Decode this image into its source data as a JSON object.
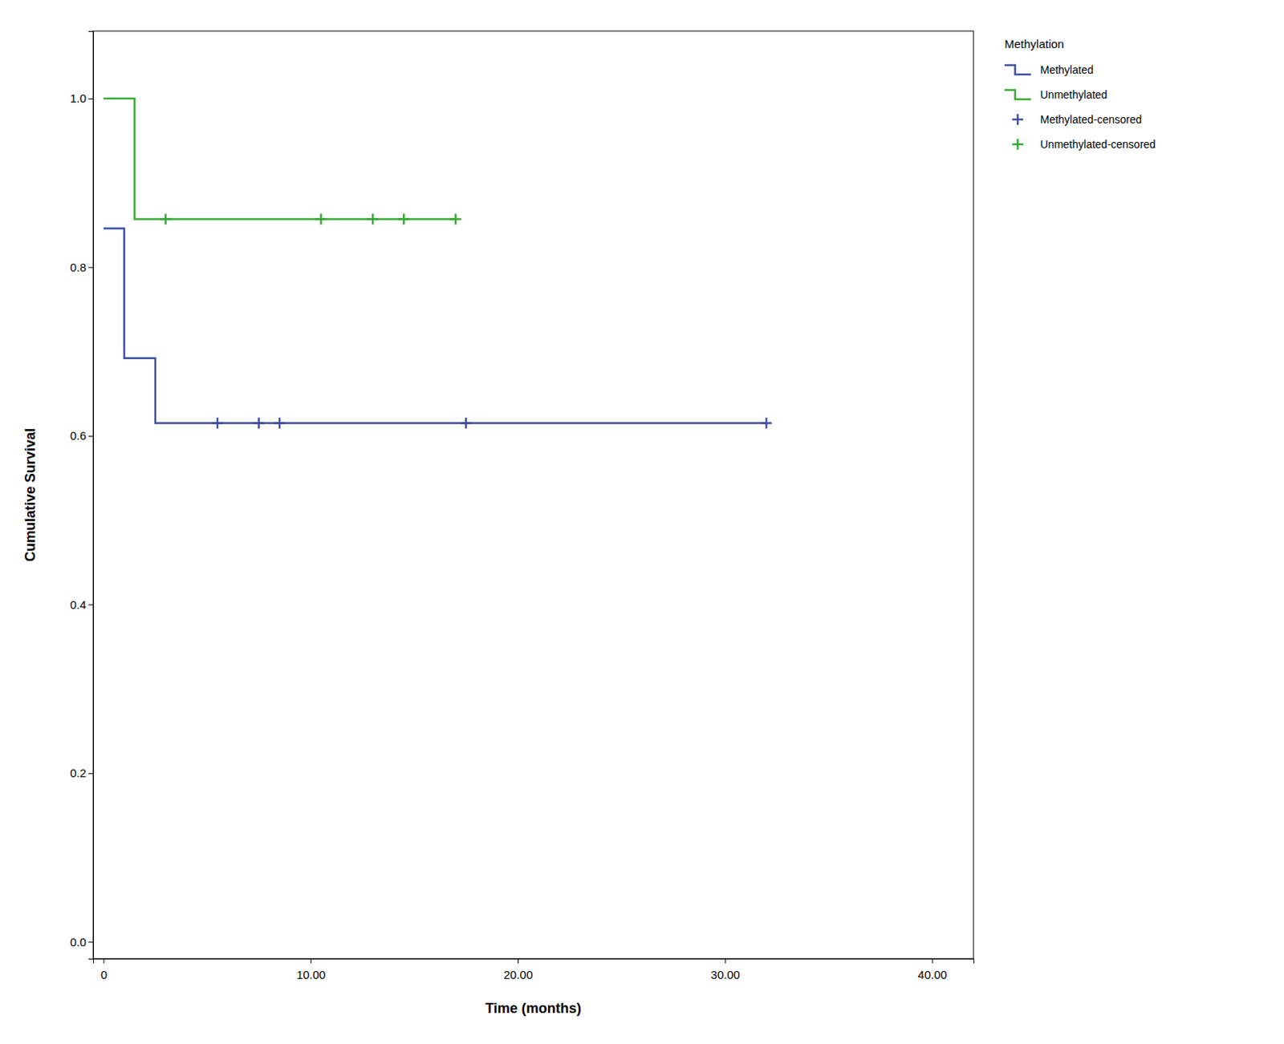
{
  "chart_data": {
    "type": "step",
    "x_label": "Time (months)",
    "y_label": "Cumulative Survival",
    "legend_title": "Methylation",
    "legend": "right",
    "grid": false,
    "xlim": [
      -0.5,
      42.0
    ],
    "ylim": [
      -0.02,
      1.08
    ],
    "xticks": [
      0,
      {
        "value": 10.0,
        "label": "10.00"
      },
      {
        "value": 20.0,
        "label": "20.00"
      },
      {
        "value": 30.0,
        "label": "30.00"
      },
      {
        "value": 40.0,
        "label": "40.00"
      }
    ],
    "yticks": [
      {
        "value": 0.0,
        "label": "0.0"
      },
      0.2,
      0.4,
      0.6,
      0.8,
      {
        "value": 1.0,
        "label": "1.0"
      }
    ],
    "series": [
      {
        "name": "Methylated",
        "type": "step",
        "color": "#3f4fa0",
        "x": [
          0,
          1.0,
          1.0,
          2.5,
          2.5,
          4.5,
          4.5,
          32.0
        ],
        "values": [
          0.846,
          0.846,
          0.692,
          0.692,
          0.615,
          0.615,
          0.615,
          0.615
        ]
      },
      {
        "name": "Unmethylated",
        "type": "step",
        "color": "#3aaa35",
        "x": [
          0,
          1.5,
          1.5,
          17.0
        ],
        "values": [
          1.0,
          1.0,
          0.857,
          0.857
        ]
      },
      {
        "name": "Methylated-censored",
        "type": "scatter",
        "marker": "plus",
        "color": "#3f4fa0",
        "x": [
          5.5,
          7.5,
          8.5,
          17.5,
          32.0
        ],
        "values": [
          0.615,
          0.615,
          0.615,
          0.615,
          0.615
        ]
      },
      {
        "name": "Unmethylated-censored",
        "type": "scatter",
        "marker": "plus",
        "color": "#3aaa35",
        "x": [
          3.0,
          10.5,
          13.0,
          14.5,
          17.0
        ],
        "values": [
          0.857,
          0.857,
          0.857,
          0.857,
          0.857
        ]
      }
    ]
  }
}
